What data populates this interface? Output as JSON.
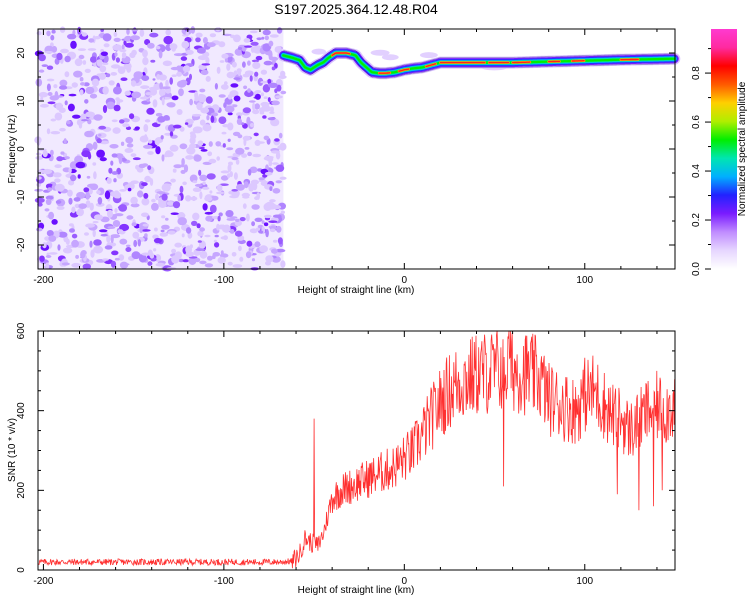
{
  "title": "S197.2025.364.12.48.R04",
  "chart_data": [
    {
      "type": "heatmap",
      "name": "spectrogram",
      "xlabel": "Height of straight line (km)",
      "ylabel": "Frequency (Hz)",
      "xlim": [
        -203,
        150
      ],
      "ylim": [
        -25,
        25
      ],
      "xticks": [
        -200,
        -100,
        0,
        100
      ],
      "xtick_labels": [
        "-200",
        "-100",
        "0",
        "100"
      ],
      "yticks": [
        -20,
        -10,
        0,
        10,
        20
      ],
      "ytick_labels": [
        "-20",
        "-10",
        "0",
        "10",
        "20"
      ],
      "noise_region_x": [
        -203,
        -67
      ],
      "signal_start_x": -67,
      "ridge": {
        "x": [
          -67,
          -62,
          -58,
          -55,
          -52,
          -48,
          -45,
          -42,
          -38,
          -32,
          -27,
          -24,
          -21,
          -18,
          -14,
          -10,
          -5,
          0,
          5,
          10,
          15,
          20,
          30,
          40,
          60,
          80,
          100,
          120,
          150
        ],
        "freq": [
          19.5,
          19.0,
          18.5,
          17.0,
          16.5,
          17.5,
          18.0,
          19.0,
          20.0,
          20.0,
          19.5,
          18.0,
          17.0,
          16.0,
          15.8,
          15.8,
          16.0,
          16.5,
          16.8,
          17.0,
          17.5,
          18.0,
          18.0,
          18.0,
          18.0,
          18.2,
          18.4,
          18.6,
          18.8
        ]
      },
      "colorbar": {
        "label": "Normalized spectral amplitude",
        "range": [
          0.0,
          0.98
        ],
        "ticks": [
          0.0,
          0.2,
          0.4,
          0.6,
          0.8
        ],
        "tick_labels": [
          "0.0",
          "0.2",
          "0.4",
          "0.6",
          "0.8"
        ],
        "colors": [
          "#ffffff",
          "#e6d6ff",
          "#c08cff",
          "#7a1cff",
          "#2222ff",
          "#00b0ff",
          "#00e6b0",
          "#00ee00",
          "#b0ee00",
          "#ffd000",
          "#ff5a00",
          "#ff0000",
          "#ff2aa0",
          "#ff3ad0"
        ]
      }
    },
    {
      "type": "line",
      "name": "snr",
      "xlabel": "Height of straight line (km)",
      "ylabel": "SNR (10 * v/v)",
      "xlim": [
        -203,
        150
      ],
      "ylim": [
        0,
        600
      ],
      "xticks": [
        -200,
        -100,
        0,
        100
      ],
      "xtick_labels": [
        "-200",
        "-100",
        "0",
        "100"
      ],
      "yticks": [
        0,
        200,
        400,
        600
      ],
      "ytick_labels": [
        "0",
        "200",
        "400",
        "600"
      ],
      "color": "#ff3030",
      "series": [
        {
          "name": "SNR envelope",
          "x": [
            -203,
            -150,
            -100,
            -70,
            -62,
            -58,
            -55,
            -52,
            -48,
            -45,
            -40,
            -35,
            -30,
            -25,
            -20,
            -15,
            -10,
            -5,
            0,
            5,
            10,
            15,
            20,
            25,
            30,
            35,
            40,
            45,
            50,
            55,
            60,
            65,
            70,
            75,
            80,
            85,
            90,
            95,
            100,
            105,
            110,
            115,
            120,
            125,
            130,
            135,
            140,
            145,
            150
          ],
          "values": [
            20,
            20,
            20,
            20,
            22,
            40,
            80,
            70,
            60,
            90,
            180,
            200,
            210,
            220,
            230,
            240,
            250,
            260,
            280,
            300,
            340,
            380,
            420,
            450,
            470,
            480,
            490,
            495,
            500,
            505,
            505,
            500,
            490,
            480,
            430,
            420,
            410,
            400,
            440,
            450,
            420,
            390,
            380,
            350,
            370,
            400,
            410,
            400,
            420
          ]
        }
      ],
      "spikes": [
        {
          "x": -50,
          "value": 380
        },
        {
          "x": 55,
          "value": 210
        },
        {
          "x": 58,
          "value": 600
        },
        {
          "x": 118,
          "value": 190
        },
        {
          "x": 130,
          "value": 150
        },
        {
          "x": 138,
          "value": 160
        },
        {
          "x": 143,
          "value": 200
        }
      ]
    }
  ]
}
